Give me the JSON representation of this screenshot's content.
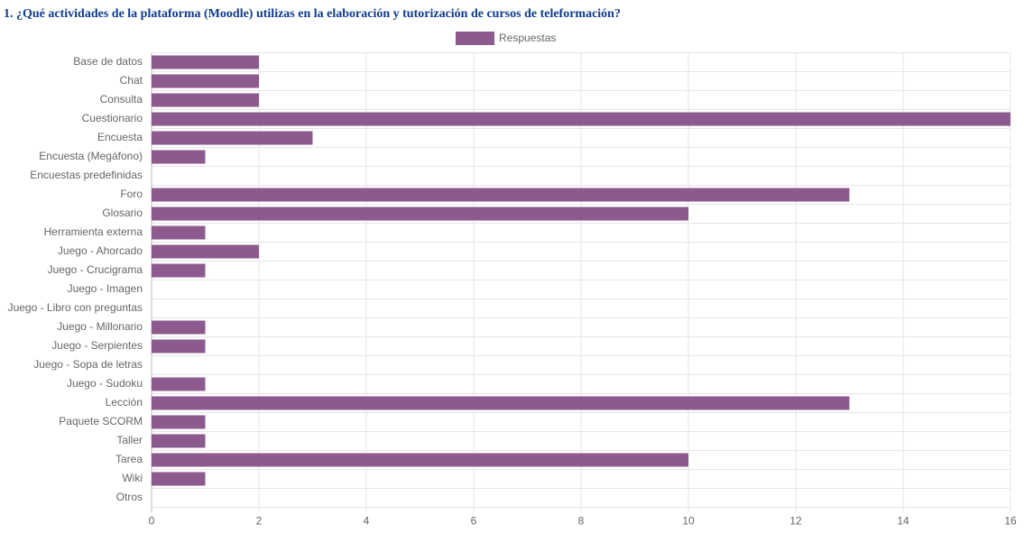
{
  "chart_data": {
    "type": "bar",
    "orientation": "horizontal",
    "title": "1. ¿Qué actividades de la plataforma (Moodle) utilizas en la elaboración y tutorización de cursos de teleformación?",
    "categories": [
      "Base de datos",
      "Chat",
      "Consulta",
      "Cuestionario",
      "Encuesta",
      "Encuesta (Megáfono)",
      "Encuestas predefinidas",
      "Foro",
      "Glosario",
      "Herramienta externa",
      "Juego - Ahorcado",
      "Juego - Crucigrama",
      "Juego - Imagen",
      "Juego - Libro con preguntas",
      "Juego - Millonario",
      "Juego - Serpientes",
      "Juego - Sopa de letras",
      "Juego - Sudoku",
      "Lección",
      "Paquete SCORM",
      "Taller",
      "Tarea",
      "Wiki",
      "Otros"
    ],
    "series": [
      {
        "name": "Respuestas",
        "color": "#8c5a8e",
        "values": [
          2,
          2,
          2,
          16,
          3,
          1,
          0,
          13,
          10,
          1,
          2,
          1,
          0,
          0,
          1,
          1,
          0,
          1,
          13,
          1,
          1,
          10,
          1,
          0
        ]
      }
    ],
    "xlim": [
      0,
      16
    ],
    "xticks": [
      0,
      2,
      4,
      6,
      8,
      10,
      12,
      14,
      16
    ],
    "grid": true,
    "legend": "top"
  }
}
